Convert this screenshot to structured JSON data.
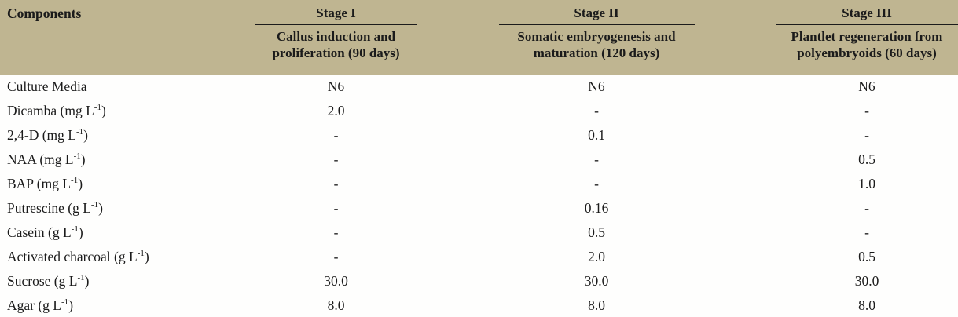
{
  "table": {
    "components_header": "Components",
    "stages": [
      {
        "title": "Stage I",
        "sub_line1": "Callus induction and",
        "sub_line2": "proliferation (90 days)"
      },
      {
        "title": "Stage II",
        "sub_line1": "Somatic embryogenesis and",
        "sub_line2": "maturation (120 days)"
      },
      {
        "title": "Stage III",
        "sub_line1": "Plantlet regeneration from",
        "sub_line2": "polyembryoids (60 days)"
      }
    ],
    "rows": [
      {
        "label": "Culture Media",
        "values": [
          "N6",
          "N6",
          "N6"
        ]
      },
      {
        "label": "Dicamba (mg L",
        "sup": "-1",
        "tail": ")",
        "values": [
          "2.0",
          "-",
          "-"
        ]
      },
      {
        "label": "2,4-D (mg L",
        "sup": "-1",
        "tail": ")",
        "values": [
          "-",
          "0.1",
          "-"
        ]
      },
      {
        "label": "NAA (mg L",
        "sup": "-1",
        "tail": ")",
        "values": [
          "-",
          "-",
          "0.5"
        ]
      },
      {
        "label": "BAP (mg L",
        "sup": "-1",
        "tail": ")",
        "values": [
          "-",
          "-",
          "1.0"
        ]
      },
      {
        "label": "Putrescine (g L",
        "sup": "-1",
        "tail": ")",
        "values": [
          "-",
          "0.16",
          "-"
        ]
      },
      {
        "label": "Casein (g L",
        "sup": "-1",
        "tail": ")",
        "values": [
          "-",
          "0.5",
          "-"
        ]
      },
      {
        "label": "Activated charcoal (g L",
        "sup": "-1",
        "tail": ")",
        "values": [
          "-",
          "2.0",
          "0.5"
        ]
      },
      {
        "label": "Sucrose (g L",
        "sup": "-1",
        "tail": ")",
        "values": [
          "30.0",
          "30.0",
          "30.0"
        ]
      },
      {
        "label": "Agar (g L",
        "sup": "-1",
        "tail": ")",
        "values": [
          "8.0",
          "8.0",
          "8.0"
        ]
      }
    ],
    "colors": {
      "header_bg": "#bfb591",
      "text": "#1b1b1b",
      "body_bg": "#fefefd",
      "border": "#161616"
    }
  }
}
